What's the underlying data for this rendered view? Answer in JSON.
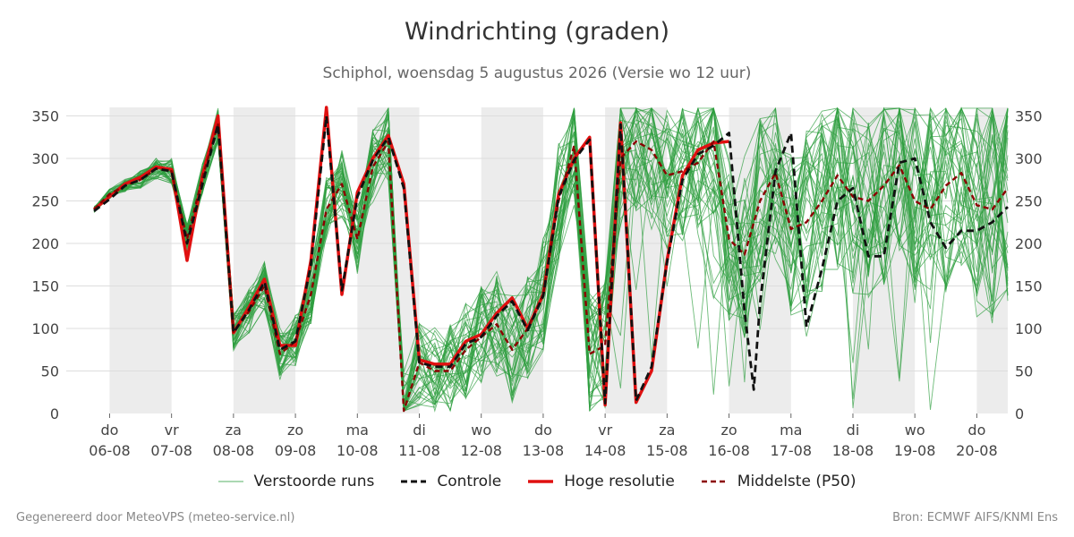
{
  "title": "Windrichting (graden)",
  "subtitle": "Schiphol, woensdag  5 augustus 2026 (Versie wo 12 uur)",
  "legend": {
    "ensemble": "Verstoorde runs",
    "control": "Controle",
    "hires": "Hoge resolutie",
    "median": "Middelste (P50)"
  },
  "footer": {
    "left": "Gegenereerd door MeteoVPS (meteo-service.nl)",
    "right": "Bron: ECMWF AIFS/KNMI Ens"
  },
  "colors": {
    "ensemble": "#2e9e3e",
    "control": "#111111",
    "hires": "#e01010",
    "median": "#8b0000",
    "weekend_band": "#ececec",
    "grid": "#dddddd"
  },
  "chart_data": {
    "type": "line",
    "title": "Windrichting (graden)",
    "x_unit": "days since 06-08 00:00",
    "xlim": [
      -0.7,
      14.5
    ],
    "ylim": [
      0,
      360
    ],
    "yticks": [
      0,
      50,
      100,
      150,
      200,
      250,
      300,
      350
    ],
    "grid": "horizontal",
    "legend_position": "bottom",
    "x_ticks": [
      {
        "day": "do",
        "date": "06-08",
        "x": 0
      },
      {
        "day": "vr",
        "date": "07-08",
        "x": 1
      },
      {
        "day": "za",
        "date": "08-08",
        "x": 2
      },
      {
        "day": "zo",
        "date": "09-08",
        "x": 3
      },
      {
        "day": "ma",
        "date": "10-08",
        "x": 4
      },
      {
        "day": "di",
        "date": "11-08",
        "x": 5
      },
      {
        "day": "wo",
        "date": "12-08",
        "x": 6
      },
      {
        "day": "do",
        "date": "13-08",
        "x": 7
      },
      {
        "day": "vr",
        "date": "14-08",
        "x": 8
      },
      {
        "day": "za",
        "date": "15-08",
        "x": 9
      },
      {
        "day": "zo",
        "date": "16-08",
        "x": 10
      },
      {
        "day": "ma",
        "date": "17-08",
        "x": 11
      },
      {
        "day": "di",
        "date": "18-08",
        "x": 12
      },
      {
        "day": "wo",
        "date": "19-08",
        "x": 13
      },
      {
        "day": "do",
        "date": "20-08",
        "x": 14
      }
    ],
    "shaded_bands": [
      [
        0,
        1
      ],
      [
        2,
        3
      ],
      [
        4,
        5
      ],
      [
        6,
        7
      ],
      [
        8,
        9
      ],
      [
        10,
        11
      ],
      [
        12,
        13
      ],
      [
        14,
        14.5
      ]
    ],
    "series": [
      {
        "name": "Hoge resolutie",
        "style": "solid-thick",
        "x": [
          -0.25,
          0,
          0.25,
          0.5,
          0.75,
          1,
          1.25,
          1.5,
          1.75,
          2,
          2.25,
          2.5,
          2.75,
          3,
          3.25,
          3.5,
          3.75,
          4,
          4.25,
          4.5,
          4.75,
          5,
          5.25,
          5.5,
          5.75,
          6,
          6.25,
          6.5,
          6.75,
          7,
          7.25,
          7.5,
          7.75,
          8,
          8.25,
          8.5,
          8.75,
          9,
          9.25,
          9.5,
          9.75,
          10
        ],
        "y": [
          240,
          255,
          270,
          278,
          290,
          287,
          180,
          280,
          350,
          95,
          125,
          158,
          80,
          80,
          180,
          360,
          140,
          260,
          300,
          327,
          270,
          63,
          58,
          58,
          85,
          93,
          118,
          136,
          100,
          140,
          258,
          300,
          325,
          10,
          342,
          13,
          50,
          180,
          280,
          310,
          318,
          320
        ]
      },
      {
        "name": "Controle",
        "style": "dashed",
        "x": [
          -0.25,
          0,
          0.25,
          0.5,
          0.75,
          1,
          1.25,
          1.5,
          1.75,
          2,
          2.25,
          2.5,
          2.75,
          3,
          3.25,
          3.5,
          3.75,
          4,
          4.25,
          4.5,
          4.75,
          5,
          5.25,
          5.5,
          5.75,
          6,
          6.25,
          6.5,
          6.75,
          7,
          7.25,
          7.5,
          7.75,
          8,
          8.25,
          8.5,
          8.75,
          9,
          9.25,
          9.5,
          9.75,
          10,
          10.25,
          10.4,
          10.5,
          10.75,
          11,
          11.25,
          11.5,
          11.75,
          12,
          12.25,
          12.5,
          12.75,
          13,
          13.25,
          13.5,
          13.75,
          14,
          14.25,
          14.5
        ],
        "y": [
          238,
          252,
          268,
          275,
          288,
          285,
          200,
          270,
          340,
          95,
          122,
          155,
          75,
          85,
          175,
          350,
          145,
          255,
          298,
          325,
          265,
          60,
          55,
          55,
          82,
          90,
          115,
          132,
          98,
          138,
          255,
          298,
          322,
          12,
          340,
          15,
          55,
          178,
          275,
          305,
          315,
          330,
          120,
          28,
          130,
          285,
          330,
          102,
          170,
          250,
          265,
          185,
          185,
          295,
          300,
          225,
          195,
          215,
          215,
          225,
          243
        ]
      },
      {
        "name": "Middelste (P50)",
        "style": "dashed",
        "x": [
          -0.25,
          0,
          0.25,
          0.5,
          0.75,
          1,
          1.25,
          1.5,
          1.75,
          2,
          2.25,
          2.5,
          2.75,
          3,
          3.25,
          3.5,
          3.75,
          4,
          4.25,
          4.5,
          4.75,
          5,
          5.25,
          5.5,
          5.75,
          6,
          6.25,
          6.5,
          6.75,
          7,
          7.25,
          7.5,
          7.75,
          8,
          8.25,
          8.5,
          8.75,
          9,
          9.25,
          9.5,
          9.75,
          10,
          10.25,
          10.5,
          10.75,
          11,
          11.25,
          11.5,
          11.75,
          12,
          12.25,
          12.5,
          12.75,
          13,
          13.25,
          13.5,
          13.75,
          14,
          14.25,
          14.5
        ],
        "y": [
          240,
          258,
          268,
          275,
          288,
          285,
          205,
          278,
          340,
          96,
          120,
          150,
          70,
          85,
          140,
          240,
          270,
          205,
          290,
          320,
          3,
          60,
          50,
          50,
          75,
          90,
          105,
          75,
          100,
          140,
          250,
          315,
          70,
          80,
          300,
          320,
          310,
          280,
          285,
          295,
          320,
          205,
          187,
          250,
          283,
          217,
          225,
          250,
          280,
          255,
          250,
          268,
          292,
          250,
          240,
          268,
          283,
          245,
          240,
          265
        ]
      }
    ]
  }
}
